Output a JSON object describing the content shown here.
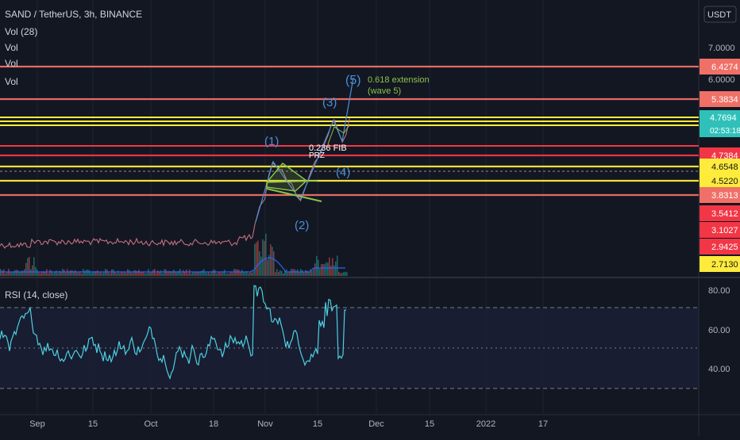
{
  "header": {
    "title": "SAND / TetherUS, 3h, BINANCE"
  },
  "indicators": [
    "Vol (28)",
    "Vol",
    "Vol",
    "Vol"
  ],
  "currency": "USDT",
  "rsi_label": "RSI (14, close)",
  "countdown": "02:53:18",
  "colors": {
    "bg": "#131722",
    "red": "#f23645",
    "salmon": "#f07067",
    "yellow": "#ffeb3b",
    "teal": "#26a69a",
    "price": "#2fc1b9",
    "blue": "#5b9bd5",
    "rsi": "#4dd0e1",
    "green": "#8bc34a"
  },
  "chart_data": [
    {
      "type": "line",
      "title": "SAND / TetherUS, 3h, BINANCE",
      "y_scale": "log",
      "ylim": [
        2.35,
        8.2
      ],
      "price_ticks": [
        "7.0000",
        "6.0000"
      ],
      "x_ticks": [
        "Sep",
        "15",
        "Oct",
        "18",
        "Nov",
        "15",
        "Dec",
        "15",
        "2022",
        "17"
      ],
      "current_price": "4.7694",
      "levels": [
        {
          "label": "6.4274",
          "value": 6.4274,
          "color": "#f07067"
        },
        {
          "label": "5.3834",
          "value": 5.3834,
          "color": "#f07067"
        },
        {
          "label": "4.7384",
          "value": 4.7384,
          "color": "#f23645"
        },
        {
          "label": "4.6548",
          "value": 4.6548,
          "color": "#ffeb3b"
        },
        {
          "label": "4.5220",
          "value": 4.522,
          "color": "#ffeb3b"
        },
        {
          "label": "3.8313",
          "value": 3.8313,
          "color": "#f07067"
        },
        {
          "label": "3.5412",
          "value": 3.5412,
          "color": "#f23645"
        },
        {
          "label": "3.1027",
          "value": 3.1027,
          "color": "#f23645"
        },
        {
          "label": "2.9425",
          "value": 2.9425,
          "color": "#f23645"
        },
        {
          "label": "2.7130",
          "value": 2.713,
          "color": "#ffeb3b"
        }
      ],
      "waves": [
        "(1)",
        "(2)",
        "(3)",
        "(4)",
        "(5)"
      ],
      "annotations": [
        "0.618 extension",
        "(wave 5)",
        "0.236 FIB",
        "PRZ"
      ]
    },
    {
      "type": "line",
      "title": "RSI (14, close)",
      "ylim": [
        20,
        90
      ],
      "y_ticks": [
        "80.00",
        "60.00",
        "40.00"
      ]
    }
  ]
}
